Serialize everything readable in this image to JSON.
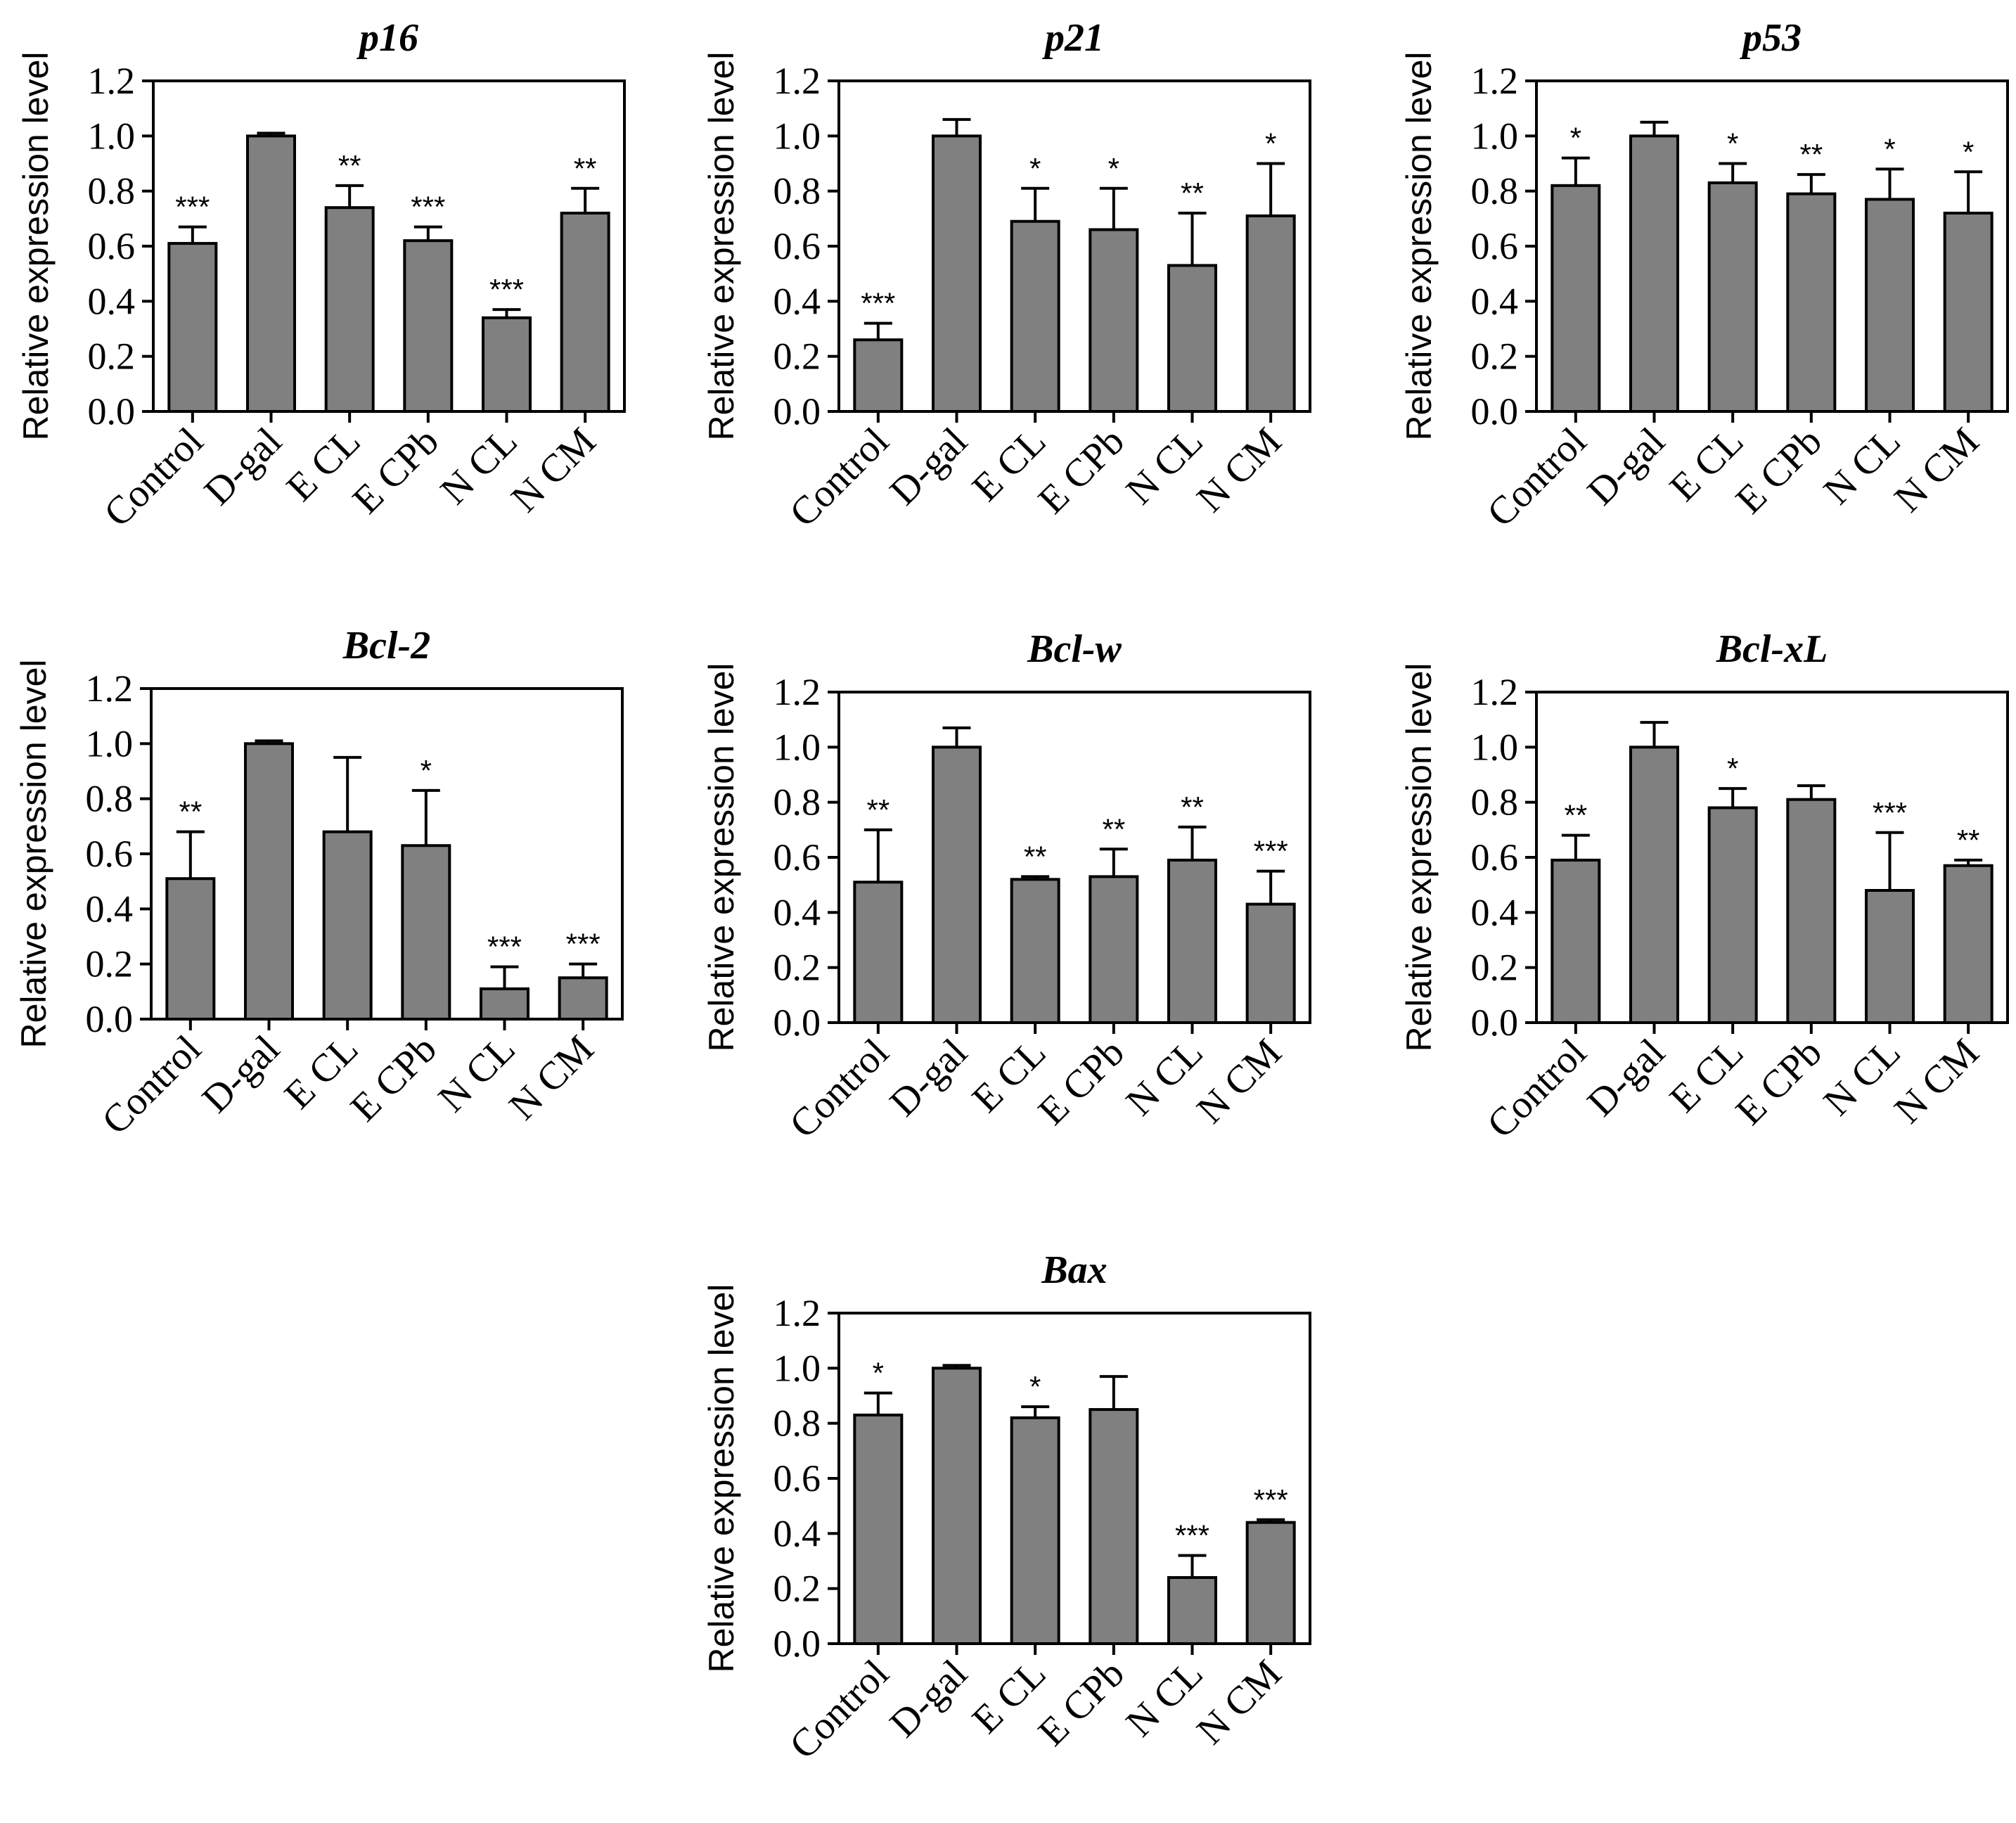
{
  "chart_data": [
    {
      "type": "bar",
      "title": "p16",
      "ylabel": "Relative expression level",
      "xlabel": "",
      "ylim": [
        0,
        1.2
      ],
      "yticks": [
        "0.0",
        "0.2",
        "0.4",
        "0.6",
        "0.8",
        "1.0",
        "1.2"
      ],
      "categories": [
        "Control",
        "D-gal",
        "E CL",
        "E CPb",
        "N CL",
        "N CM"
      ],
      "values": [
        0.61,
        1.0,
        0.74,
        0.62,
        0.34,
        0.72
      ],
      "errors": [
        0.06,
        0.01,
        0.08,
        0.05,
        0.03,
        0.09
      ],
      "significance": [
        "***",
        "",
        "**",
        "***",
        "***",
        "**"
      ]
    },
    {
      "type": "bar",
      "title": "p21",
      "ylabel": "Relative expression level",
      "xlabel": "",
      "ylim": [
        0,
        1.2
      ],
      "yticks": [
        "0.0",
        "0.2",
        "0.4",
        "0.6",
        "0.8",
        "1.0",
        "1.2"
      ],
      "categories": [
        "Control",
        "D-gal",
        "E CL",
        "E CPb",
        "N CL",
        "N CM"
      ],
      "values": [
        0.26,
        1.0,
        0.69,
        0.66,
        0.53,
        0.71
      ],
      "errors": [
        0.06,
        0.06,
        0.12,
        0.15,
        0.19,
        0.19
      ],
      "significance": [
        "***",
        "",
        "*",
        "*",
        "**",
        "*"
      ]
    },
    {
      "type": "bar",
      "title": "p53",
      "ylabel": "Relative expression level",
      "xlabel": "",
      "ylim": [
        0,
        1.2
      ],
      "yticks": [
        "0.0",
        "0.2",
        "0.4",
        "0.6",
        "0.8",
        "1.0",
        "1.2"
      ],
      "categories": [
        "Control",
        "D-gal",
        "E CL",
        "E CPb",
        "N CL",
        "N CM"
      ],
      "values": [
        0.82,
        1.0,
        0.83,
        0.79,
        0.77,
        0.72
      ],
      "errors": [
        0.1,
        0.05,
        0.07,
        0.07,
        0.11,
        0.15
      ],
      "significance": [
        "*",
        "",
        "*",
        "**",
        "*",
        "*"
      ]
    },
    {
      "type": "bar",
      "title": "Bcl-2",
      "ylabel": "Relative expression level",
      "xlabel": "",
      "ylim": [
        0,
        1.2
      ],
      "yticks": [
        "0.0",
        "0.2",
        "0.4",
        "0.6",
        "0.8",
        "1.0",
        "1.2"
      ],
      "categories": [
        "Control",
        "D-gal",
        "E CL",
        "E CPb",
        "N CL",
        "N CM"
      ],
      "values": [
        0.51,
        1.0,
        0.68,
        0.63,
        0.11,
        0.15
      ],
      "errors": [
        0.17,
        0.01,
        0.27,
        0.2,
        0.08,
        0.05
      ],
      "significance": [
        "**",
        "",
        "",
        "*",
        "***",
        "***"
      ]
    },
    {
      "type": "bar",
      "title": "Bcl-w",
      "ylabel": "Relative expression level",
      "xlabel": "",
      "ylim": [
        0,
        1.2
      ],
      "yticks": [
        "0.0",
        "0.2",
        "0.4",
        "0.6",
        "0.8",
        "1.0",
        "1.2"
      ],
      "categories": [
        "Control",
        "D-gal",
        "E CL",
        "E CPb",
        "N CL",
        "N CM"
      ],
      "values": [
        0.51,
        1.0,
        0.52,
        0.53,
        0.59,
        0.43
      ],
      "errors": [
        0.19,
        0.07,
        0.01,
        0.1,
        0.12,
        0.12
      ],
      "significance": [
        "**",
        "",
        "**",
        "**",
        "**",
        "***"
      ]
    },
    {
      "type": "bar",
      "title": "Bcl-xL",
      "ylabel": "Relative expression level",
      "xlabel": "",
      "ylim": [
        0,
        1.2
      ],
      "yticks": [
        "0.0",
        "0.2",
        "0.4",
        "0.6",
        "0.8",
        "1.0",
        "1.2"
      ],
      "categories": [
        "Control",
        "D-gal",
        "E CL",
        "E CPb",
        "N CL",
        "N CM"
      ],
      "values": [
        0.59,
        1.0,
        0.78,
        0.81,
        0.48,
        0.57
      ],
      "errors": [
        0.09,
        0.09,
        0.07,
        0.05,
        0.21,
        0.02
      ],
      "significance": [
        "**",
        "",
        "*",
        "",
        "***",
        "**"
      ]
    },
    {
      "type": "bar",
      "title": "Bax",
      "ylabel": "Relative expression level",
      "xlabel": "",
      "ylim": [
        0,
        1.2
      ],
      "yticks": [
        "0.0",
        "0.2",
        "0.4",
        "0.6",
        "0.8",
        "1.0",
        "1.2"
      ],
      "categories": [
        "Control",
        "D-gal",
        "E CL",
        "E CPb",
        "N CL",
        "N CM"
      ],
      "values": [
        0.83,
        1.0,
        0.82,
        0.85,
        0.24,
        0.44
      ],
      "errors": [
        0.08,
        0.01,
        0.04,
        0.12,
        0.08,
        0.01
      ],
      "significance": [
        "*",
        "",
        "*",
        "",
        "***",
        "***"
      ]
    }
  ],
  "colors": {
    "bar_fill": "#808080",
    "stroke": "#000000",
    "background": "#ffffff"
  }
}
